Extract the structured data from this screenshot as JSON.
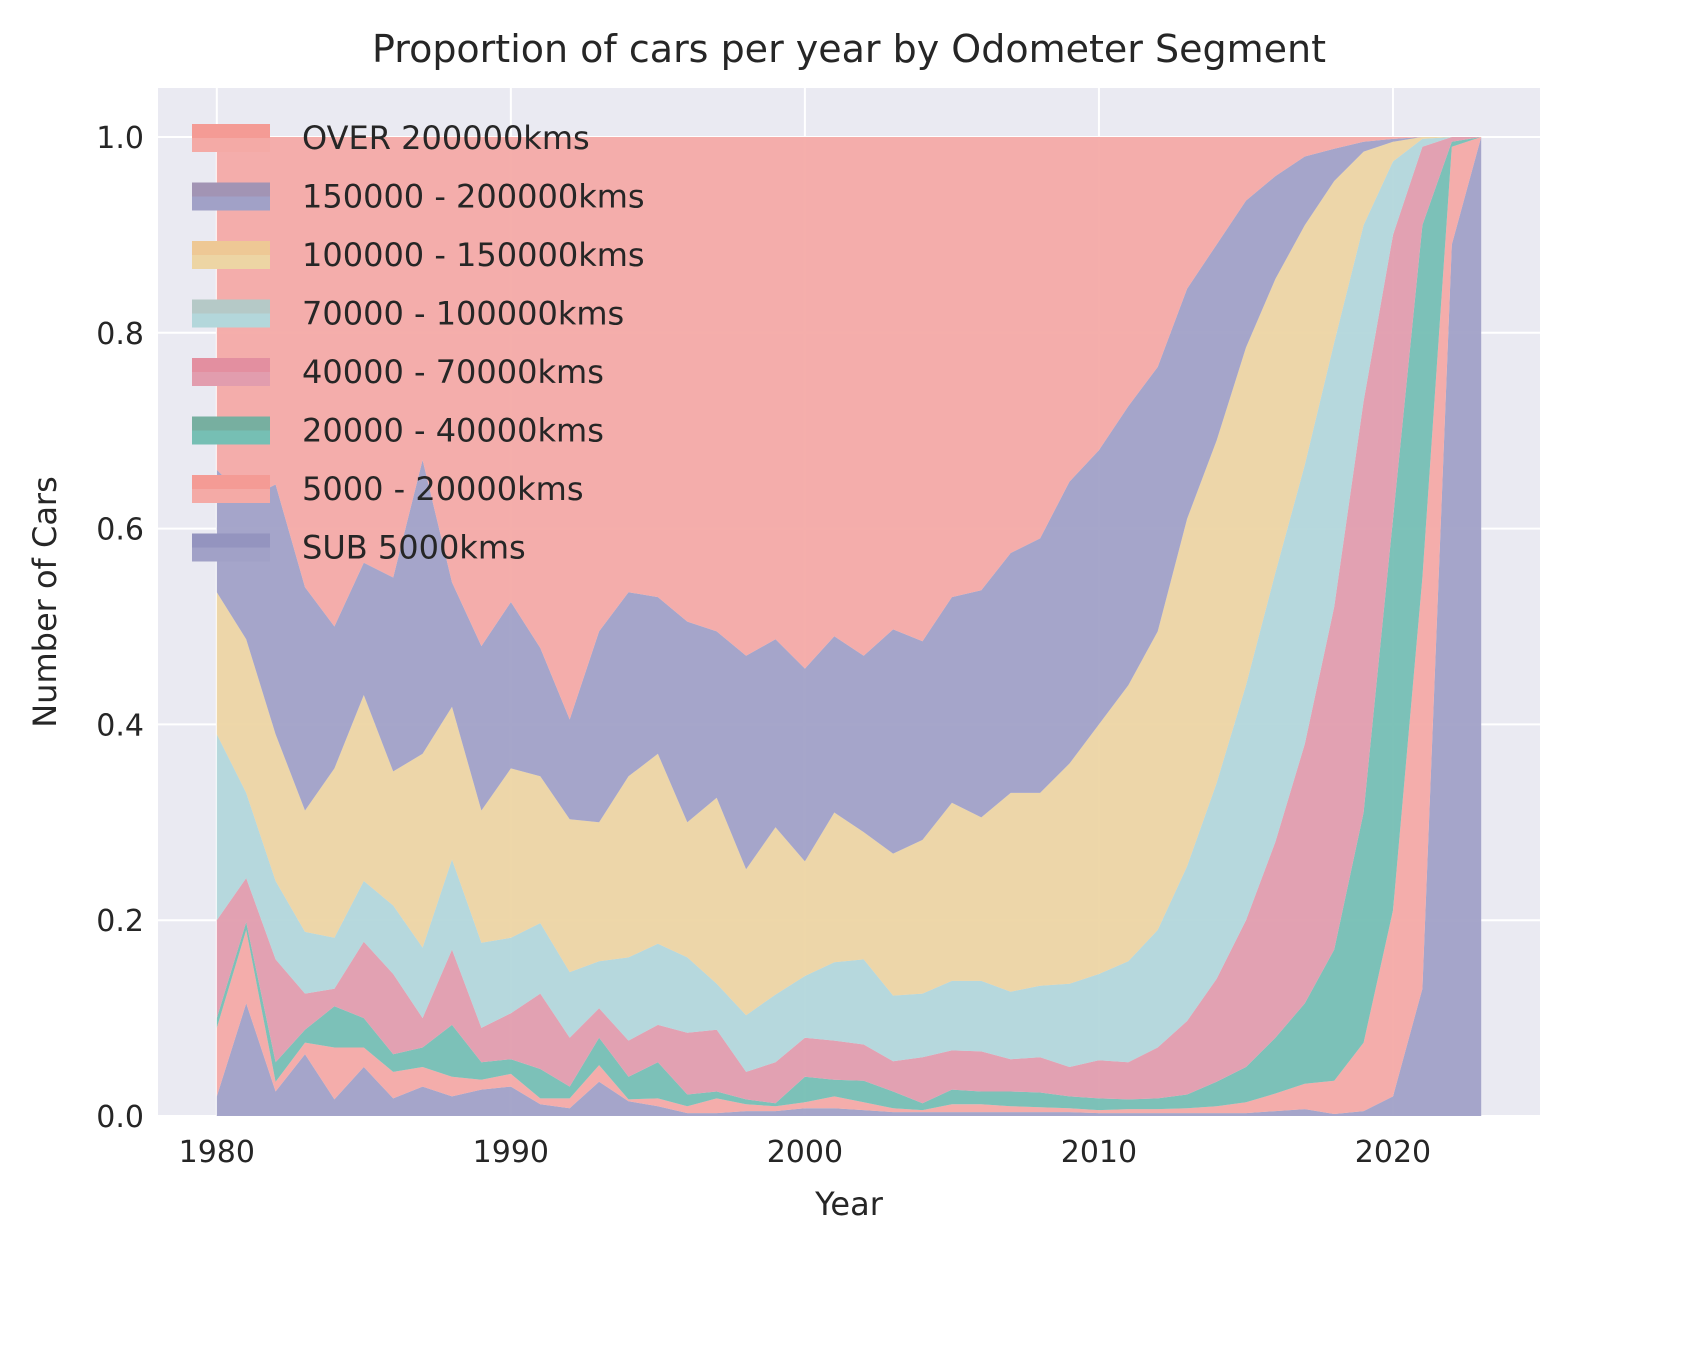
{
  "chart_data": {
    "type": "area",
    "stacked": true,
    "title": "Proportion of cars per year by Odometer Segment",
    "xlabel": "Year",
    "ylabel": "Number of Cars",
    "xlim": [
      1978,
      2025
    ],
    "ylim": [
      0,
      1.05
    ],
    "xticks": [
      "1980",
      "1990",
      "2000",
      "2010",
      "2020"
    ],
    "yticks": [
      "0.0",
      "0.2",
      "0.4",
      "0.6",
      "0.8",
      "1.0"
    ],
    "grid": true,
    "legend_position": "top-left",
    "background": "#eaeaf2",
    "x": [
      1980,
      1981,
      1982,
      1983,
      1984,
      1985,
      1986,
      1987,
      1988,
      1989,
      1990,
      1991,
      1992,
      1993,
      1994,
      1995,
      1996,
      1997,
      1998,
      1999,
      2000,
      2001,
      2002,
      2003,
      2004,
      2005,
      2006,
      2007,
      2008,
      2009,
      2010,
      2011,
      2012,
      2013,
      2014,
      2015,
      2016,
      2017,
      2018,
      2019,
      2020,
      2021,
      2022,
      2023
    ],
    "series": [
      {
        "name": "SUB 5000kms",
        "color": "#a1a1c7",
        "swatch": "#8484b5",
        "values": [
          0.02,
          0.115,
          0.025,
          0.063,
          0.017,
          0.05,
          0.018,
          0.03,
          0.02,
          0.027,
          0.03,
          0.012,
          0.008,
          0.035,
          0.015,
          0.01,
          0.003,
          0.003,
          0.005,
          0.005,
          0.008,
          0.008,
          0.006,
          0.004,
          0.004,
          0.004,
          0.004,
          0.004,
          0.004,
          0.004,
          0.003,
          0.003,
          0.003,
          0.003,
          0.003,
          0.003,
          0.005,
          0.007,
          0.002,
          0.005,
          0.02,
          0.13,
          0.89,
          1.0
        ]
      },
      {
        "name": "5000 - 20000kms",
        "color": "#f4aaa6",
        "swatch": "#f58a80",
        "values": [
          0.07,
          0.075,
          0.01,
          0.012,
          0.053,
          0.02,
          0.027,
          0.02,
          0.02,
          0.01,
          0.013,
          0.006,
          0.01,
          0.017,
          0.002,
          0.008,
          0.007,
          0.015,
          0.007,
          0.005,
          0.006,
          0.012,
          0.008,
          0.004,
          0.002,
          0.008,
          0.008,
          0.006,
          0.005,
          0.004,
          0.003,
          0.004,
          0.004,
          0.005,
          0.007,
          0.011,
          0.018,
          0.026,
          0.034,
          0.07,
          0.19,
          0.42,
          0.1,
          0
        ]
      },
      {
        "name": "20000 - 40000kms",
        "color": "#76bfb4",
        "swatch": "#7a9c88",
        "values": [
          0.01,
          0.008,
          0.02,
          0.013,
          0.042,
          0.03,
          0.018,
          0.02,
          0.053,
          0.018,
          0.015,
          0.03,
          0.012,
          0.028,
          0.023,
          0.037,
          0.012,
          0.007,
          0.005,
          0.003,
          0.026,
          0.017,
          0.022,
          0.017,
          0.007,
          0.015,
          0.013,
          0.015,
          0.015,
          0.012,
          0.012,
          0.01,
          0.011,
          0.014,
          0.025,
          0.036,
          0.057,
          0.082,
          0.134,
          0.235,
          0.4,
          0.36,
          0.005,
          0
        ]
      },
      {
        "name": "40000 - 70000kms",
        "color": "#e29dae",
        "swatch": "#e57f90",
        "values": [
          0.1,
          0.045,
          0.105,
          0.037,
          0.018,
          0.078,
          0.082,
          0.03,
          0.077,
          0.035,
          0.047,
          0.077,
          0.05,
          0.03,
          0.037,
          0.038,
          0.063,
          0.063,
          0.028,
          0.042,
          0.04,
          0.04,
          0.037,
          0.031,
          0.047,
          0.04,
          0.041,
          0.033,
          0.036,
          0.03,
          0.039,
          0.038,
          0.052,
          0.075,
          0.105,
          0.15,
          0.2,
          0.265,
          0.35,
          0.42,
          0.29,
          0.08,
          0.005,
          0
        ]
      },
      {
        "name": "70000 - 100000kms",
        "color": "#b3d7db",
        "swatch": "#b8b8b0",
        "values": [
          0.19,
          0.087,
          0.08,
          0.063,
          0.052,
          0.062,
          0.07,
          0.072,
          0.092,
          0.087,
          0.077,
          0.072,
          0.067,
          0.048,
          0.085,
          0.083,
          0.077,
          0.047,
          0.058,
          0.069,
          0.063,
          0.08,
          0.087,
          0.067,
          0.065,
          0.071,
          0.072,
          0.069,
          0.073,
          0.085,
          0.088,
          0.103,
          0.12,
          0.158,
          0.2,
          0.24,
          0.275,
          0.285,
          0.27,
          0.18,
          0.075,
          0.008,
          0,
          0
        ]
      },
      {
        "name": "100000 - 150000kms",
        "color": "#edd5a4",
        "swatch": "#efb883",
        "values": [
          0.145,
          0.157,
          0.15,
          0.124,
          0.173,
          0.19,
          0.137,
          0.198,
          0.156,
          0.135,
          0.173,
          0.15,
          0.156,
          0.142,
          0.185,
          0.194,
          0.138,
          0.19,
          0.149,
          0.171,
          0.117,
          0.153,
          0.13,
          0.145,
          0.157,
          0.182,
          0.167,
          0.203,
          0.197,
          0.225,
          0.255,
          0.282,
          0.305,
          0.355,
          0.35,
          0.345,
          0.3,
          0.245,
          0.165,
          0.075,
          0.02,
          0.002,
          0,
          0
        ]
      },
      {
        "name": "150000 - 200000kms",
        "color": "#a1a1c7",
        "swatch": "#a3869e",
        "values": [
          0.125,
          0.143,
          0.255,
          0.228,
          0.145,
          0.135,
          0.198,
          0.3,
          0.127,
          0.168,
          0.17,
          0.131,
          0.102,
          0.195,
          0.188,
          0.16,
          0.205,
          0.17,
          0.218,
          0.192,
          0.197,
          0.18,
          0.18,
          0.229,
          0.203,
          0.21,
          0.232,
          0.245,
          0.26,
          0.288,
          0.28,
          0.285,
          0.27,
          0.235,
          0.2,
          0.15,
          0.105,
          0.07,
          0.033,
          0.01,
          0.003,
          0,
          0,
          0
        ]
      },
      {
        "name": "OVER 200000kms",
        "color": "#f4aaa6",
        "swatch": "#f58a80",
        "values": [
          0.34,
          0.37,
          0.355,
          0.46,
          0.5,
          0.435,
          0.45,
          0.33,
          0.455,
          0.52,
          0.475,
          0.522,
          0.595,
          0.505,
          0.465,
          0.47,
          0.495,
          0.505,
          0.53,
          0.513,
          0.543,
          0.51,
          0.53,
          0.503,
          0.515,
          0.47,
          0.463,
          0.425,
          0.41,
          0.352,
          0.32,
          0.275,
          0.235,
          0.155,
          0.11,
          0.065,
          0.04,
          0.02,
          0.012,
          0.005,
          0.002,
          0,
          0,
          0
        ]
      }
    ]
  }
}
